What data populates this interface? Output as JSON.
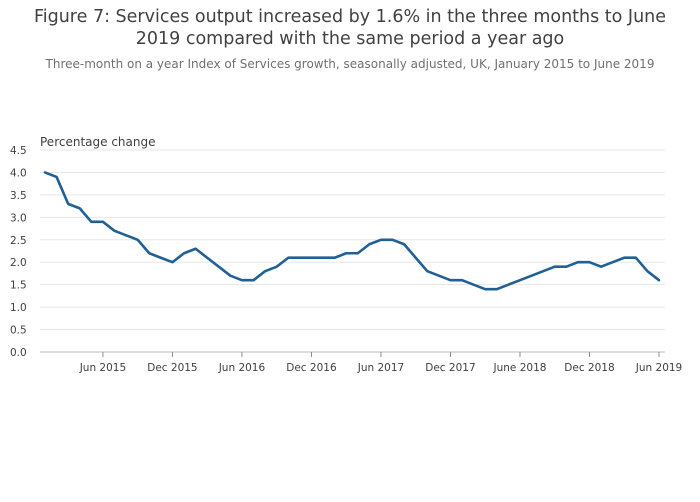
{
  "title_line1": "Figure 7: Services output increased by 1.6% in the three months to June",
  "title_line2": "2019 compared with the same period a year ago",
  "subtitle": "Three-month on a year Index of Services growth, seasonally adjusted, UK, January 2015 to June 2019",
  "chart_data": {
    "type": "line",
    "title": "Figure 7: Services output increased by 1.6% in the three months to June 2019 compared with the same period a year ago",
    "subtitle": "Three-month on a year Index of Services growth, seasonally adjusted, UK, January 2015 to June 2019",
    "ylabel": "Percentage change",
    "xlabel": "",
    "ylim": [
      0,
      4.5
    ],
    "yticks": [
      "0.0",
      "0.5",
      "1.0",
      "1.5",
      "2.0",
      "2.5",
      "3.0",
      "3.5",
      "4.0",
      "4.5"
    ],
    "xtick_labels": [
      "Jun 2015",
      "Dec 2015",
      "Jun 2016",
      "Dec 2016",
      "Jun 2017",
      "Dec 2017",
      "June 2018",
      "Dec 2018",
      "Jun 2019"
    ],
    "xtick_dates": [
      "2015-06",
      "2015-12",
      "2016-06",
      "2016-12",
      "2017-06",
      "2017-12",
      "2018-06",
      "2018-12",
      "2019-06"
    ],
    "grid": true,
    "line_color": "#206095",
    "x": [
      "2015-01",
      "2015-02",
      "2015-03",
      "2015-04",
      "2015-05",
      "2015-06",
      "2015-07",
      "2015-08",
      "2015-09",
      "2015-10",
      "2015-11",
      "2015-12",
      "2016-01",
      "2016-02",
      "2016-03",
      "2016-04",
      "2016-05",
      "2016-06",
      "2016-07",
      "2016-08",
      "2016-09",
      "2016-10",
      "2016-11",
      "2016-12",
      "2017-01",
      "2017-02",
      "2017-03",
      "2017-04",
      "2017-05",
      "2017-06",
      "2017-07",
      "2017-08",
      "2017-09",
      "2017-10",
      "2017-11",
      "2017-12",
      "2018-01",
      "2018-02",
      "2018-03",
      "2018-04",
      "2018-05",
      "2018-06",
      "2018-07",
      "2018-08",
      "2018-09",
      "2018-10",
      "2018-11",
      "2018-12",
      "2019-01",
      "2019-02",
      "2019-03",
      "2019-04",
      "2019-05",
      "2019-06"
    ],
    "series": [
      {
        "values": [
          4.0,
          3.9,
          3.3,
          3.2,
          2.9,
          2.9,
          2.7,
          2.6,
          2.5,
          2.2,
          2.1,
          2.0,
          2.2,
          2.3,
          2.1,
          1.9,
          1.7,
          1.6,
          1.6,
          1.8,
          1.9,
          2.1,
          2.1,
          2.1,
          2.1,
          2.1,
          2.2,
          2.2,
          2.4,
          2.5,
          2.5,
          2.4,
          2.1,
          1.8,
          1.7,
          1.6,
          1.6,
          1.5,
          1.4,
          1.4,
          1.5,
          1.6,
          1.7,
          1.8,
          1.9,
          1.9,
          2.0,
          2.0,
          1.9,
          2.0,
          2.1,
          2.1,
          1.8,
          1.6
        ]
      }
    ]
  }
}
